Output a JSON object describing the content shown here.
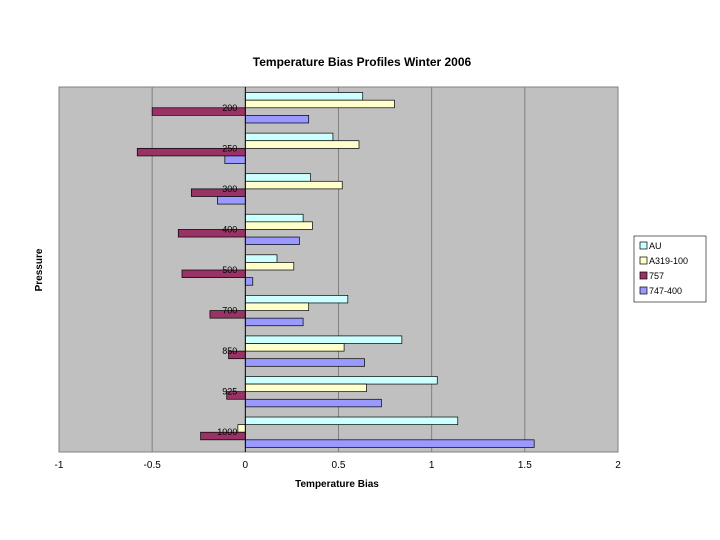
{
  "chart_data": {
    "type": "bar",
    "orientation": "horizontal",
    "title": "Temperature Bias Profiles Winter 2006",
    "xlabel": "Temperature Bias",
    "ylabel": "Pressure",
    "xlim": [
      -1,
      2
    ],
    "xticks": [
      "-1",
      "-0.5",
      "0",
      "0.5",
      "1",
      "1.5",
      "2"
    ],
    "categories": [
      "200",
      "250",
      "300",
      "400",
      "500",
      "700",
      "850",
      "925",
      "1000"
    ],
    "series": [
      {
        "name": "AU",
        "color": "#ccffff",
        "values": [
          0.63,
          0.47,
          0.35,
          0.31,
          0.17,
          0.55,
          0.84,
          1.03,
          1.14
        ]
      },
      {
        "name": "A319-100",
        "color": "#ffffcc",
        "values": [
          0.8,
          0.61,
          0.52,
          0.36,
          0.26,
          0.34,
          0.53,
          0.65,
          -0.04
        ]
      },
      {
        "name": "757",
        "color": "#993366",
        "values": [
          -0.5,
          -0.58,
          -0.29,
          -0.36,
          -0.34,
          -0.19,
          -0.09,
          -0.1,
          -0.24
        ]
      },
      {
        "name": "747-400",
        "color": "#9999ff",
        "values": [
          0.34,
          -0.11,
          -0.15,
          0.29,
          0.04,
          0.31,
          0.64,
          0.73,
          1.55
        ]
      }
    ],
    "plot_background": "#c0c0c0",
    "grid": true,
    "legend_position": "right"
  }
}
